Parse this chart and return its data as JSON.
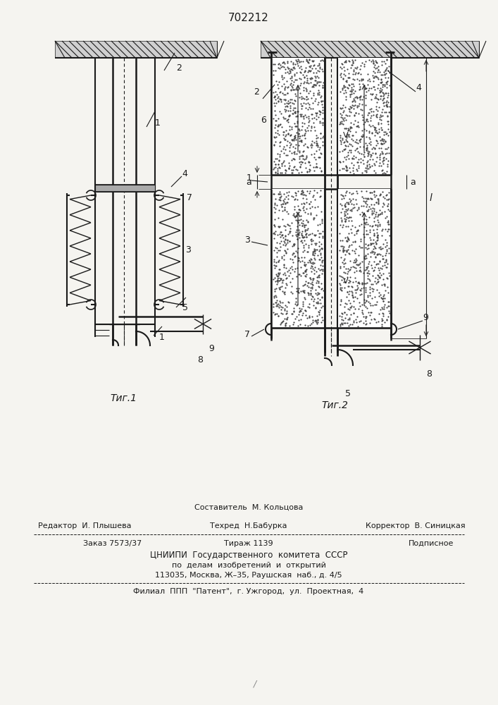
{
  "title": "702212",
  "fig1_label": "Τиг.1",
  "fig2_label": "Τиг.2",
  "bg_color": "#f5f4f0",
  "line_color": "#1a1a1a",
  "footer_sestavitel": "Составитель  М. Кольцова",
  "footer_redaktor": "Редактор  И. Плышева",
  "footer_tehred": "Техред  Н.Бабурка",
  "footer_korrektor": "Корректор  В. Синицкая",
  "footer_zakaz": "Заказ 7573/37",
  "footer_tirazh": "Тираж 1139",
  "footer_podpisnoe": "Подписное",
  "footer_cniip1": "ЦНИИПИ  Государственного  комитета  СССР",
  "footer_cniip2": "по  делам  изобретений  и  открытий",
  "footer_addr": "113035, Москва, Ж–35, Раушская  наб., д. 4/5",
  "footer_filial": "Филиал  ППП  \"Патент\",  г. Ужгород,  ул.  Проектная,  4"
}
